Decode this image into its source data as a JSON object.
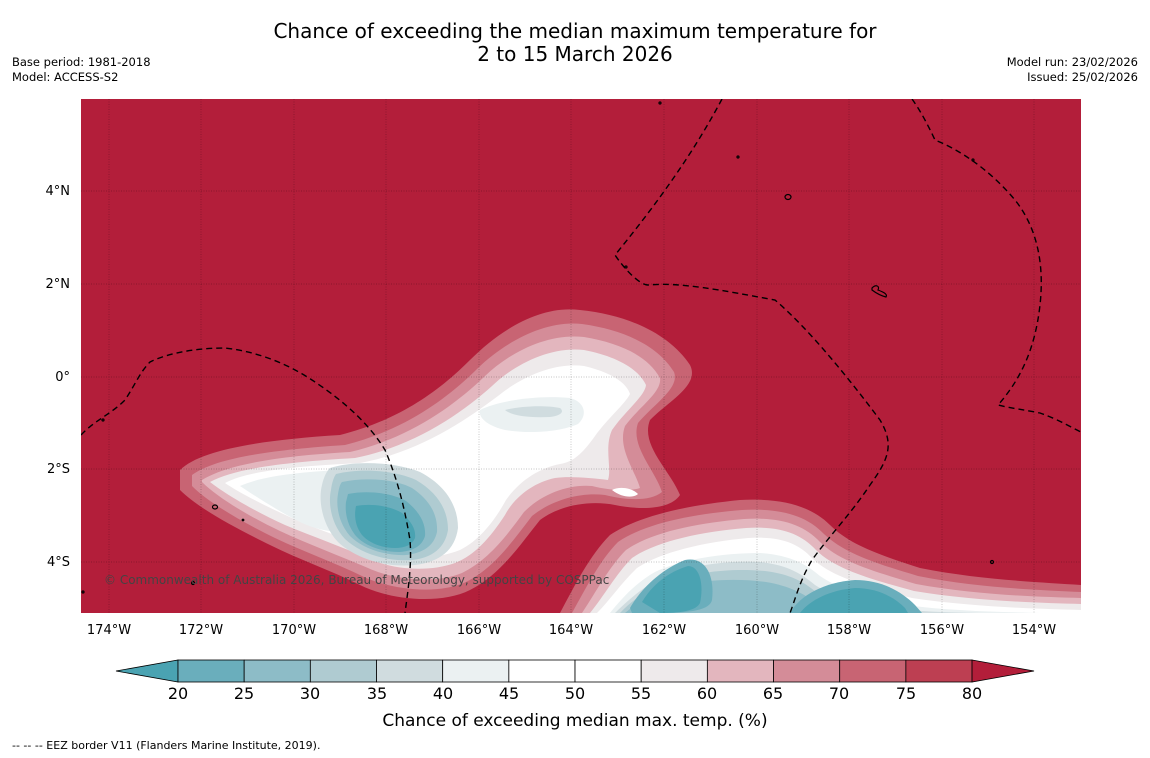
{
  "title": {
    "line1": "Chance of exceeding the median maximum temperature for",
    "line2": "2 to 15 March 2026"
  },
  "meta_left": {
    "base_period": "Base period: 1981-2018",
    "model": "Model: ACCESS-S2"
  },
  "meta_right": {
    "model_run": "Model run: 23/02/2026",
    "issued": "Issued: 25/02/2026"
  },
  "map": {
    "lat_labels": [
      "4°N",
      "2°N",
      "0°",
      "2°S",
      "4°S"
    ],
    "lon_labels": [
      "174°W",
      "172°W",
      "170°W",
      "168°W",
      "166°W",
      "164°W",
      "162°W",
      "160°W",
      "158°W",
      "156°W",
      "154°W"
    ],
    "copyright": "© Commonwealth of Australia 2026, Bureau of Meteorology, supported by COSPPac",
    "background_color": "#b31e3a"
  },
  "colorbar": {
    "ticks": [
      "20",
      "25",
      "30",
      "35",
      "40",
      "45",
      "50",
      "55",
      "60",
      "65",
      "70",
      "75",
      "80"
    ],
    "colors": [
      "#4aa3b2",
      "#6aaebc",
      "#8dbcc7",
      "#afcbd1",
      "#d0dcdf",
      "#ebf1f2",
      "#ffffff",
      "#ffffff",
      "#eeeaeb",
      "#e3b6be",
      "#d48c98",
      "#c86473",
      "#bd3f52",
      "#b31e3a"
    ],
    "title": "Chance of exceeding median max. temp. (%)"
  },
  "footnote": "--  --  -- EEZ border V11 (Flanders Marine Institute, 2019)."
}
